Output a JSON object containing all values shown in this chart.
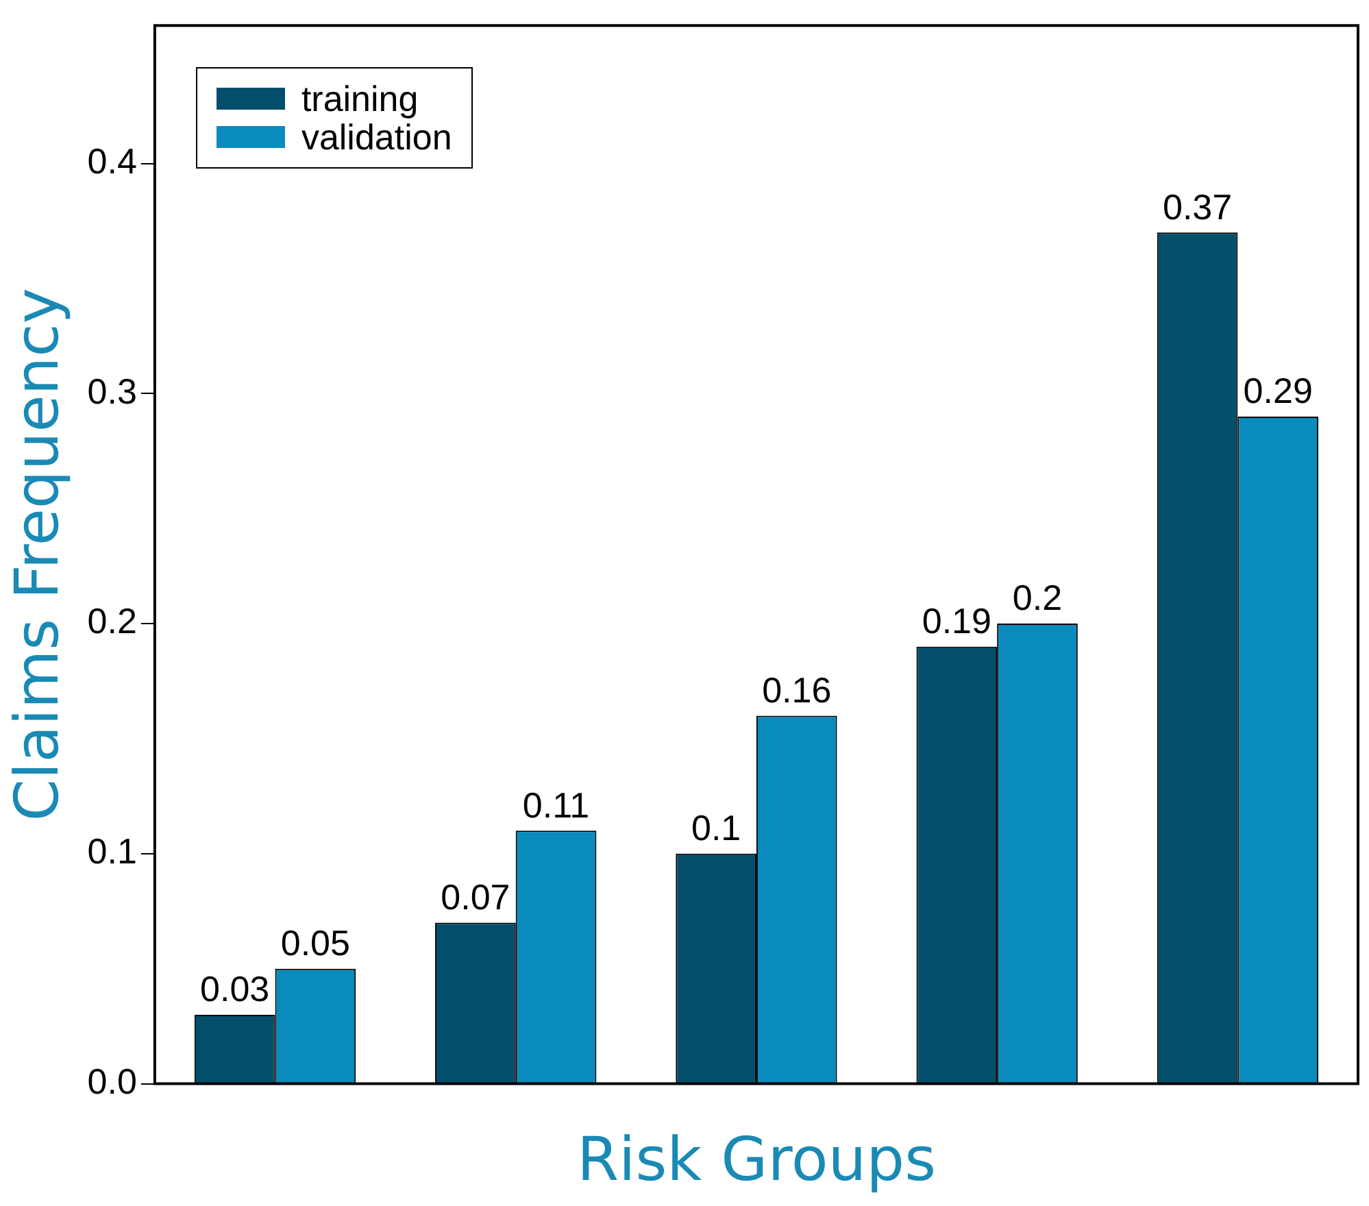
{
  "chart_data": {
    "type": "bar",
    "xlabel": "Risk Groups",
    "ylabel": "Claims Frequency",
    "categories": [
      null,
      null,
      null,
      null,
      null
    ],
    "series": [
      {
        "name": "training",
        "color": "#034e6b",
        "values": [
          0.03,
          0.07,
          0.1,
          0.19,
          0.37
        ]
      },
      {
        "name": "validation",
        "color": "#0a8bbd",
        "values": [
          0.05,
          0.11,
          0.16,
          0.2,
          0.29
        ]
      }
    ],
    "ylim": [
      0,
      0.46
    ],
    "yticks": [
      {
        "value": 0,
        "label": "0.0"
      },
      0.1,
      0.2,
      0.3,
      0.4
    ],
    "grid": false,
    "legend": "top left",
    "data_labels": true
  }
}
